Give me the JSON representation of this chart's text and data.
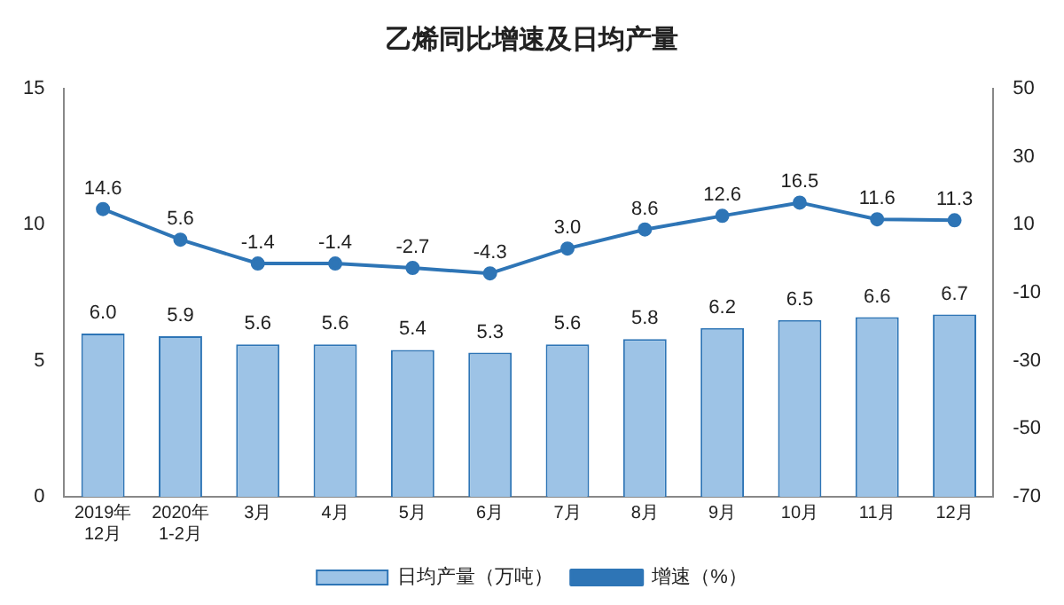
{
  "chart_data": {
    "type": "bar",
    "title": "乙烯同比增速及日均产量",
    "categories": [
      "2019年\n12月",
      "2020年\n1-2月",
      "3月",
      "4月",
      "5月",
      "6月",
      "7月",
      "8月",
      "9月",
      "10月",
      "11月",
      "12月"
    ],
    "series": [
      {
        "name": "日均产量（万吨）",
        "color": "#9dc3e6",
        "values": [
          6.0,
          5.9,
          5.6,
          5.6,
          5.4,
          5.3,
          5.6,
          5.8,
          6.2,
          6.5,
          6.6,
          6.7
        ],
        "value_labels": [
          "6.0",
          "5.9",
          "5.6",
          "5.6",
          "5.4",
          "5.3",
          "5.6",
          "5.8",
          "6.2",
          "6.5",
          "6.6",
          "6.7"
        ]
      },
      {
        "name": "增速（%）",
        "type": "line",
        "axis": "y2",
        "color": "#2e75b6",
        "values": [
          14.6,
          5.6,
          -1.4,
          -1.4,
          -2.7,
          -4.3,
          3.0,
          8.6,
          12.6,
          16.5,
          11.6,
          11.3
        ],
        "value_labels": [
          "14.6",
          "5.6",
          "-1.4",
          "-1.4",
          "-2.7",
          "-4.3",
          "3.0",
          "8.6",
          "12.6",
          "16.5",
          "11.6",
          "11.3"
        ]
      }
    ],
    "ylim": [
      0,
      15
    ],
    "yticks": [
      0,
      5,
      10,
      15
    ],
    "y2lim": [
      -70,
      50
    ],
    "y2ticks": [
      -70,
      -50,
      -30,
      -10,
      10,
      30,
      50
    ],
    "grid": false,
    "legend": "bottom",
    "marker": "circle"
  }
}
